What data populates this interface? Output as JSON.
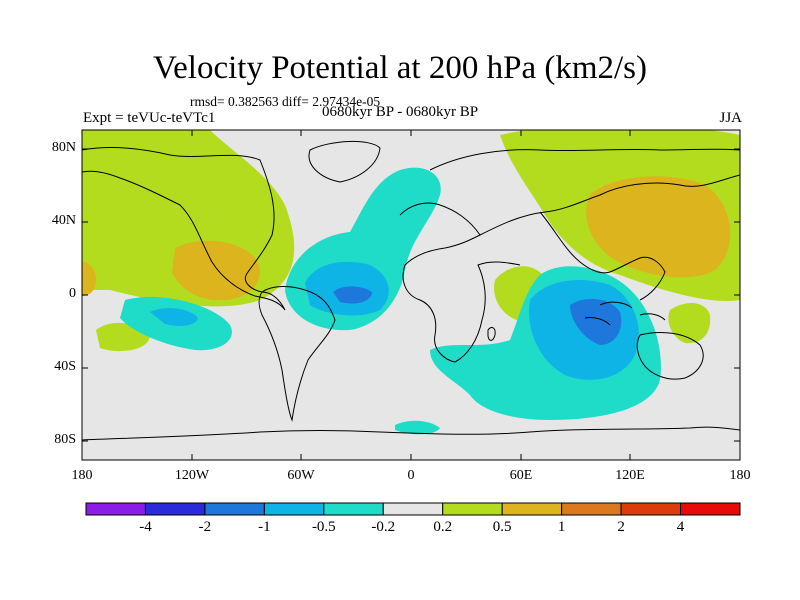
{
  "title": "Velocity Potential at 200 hPa (km2/s)",
  "stats": "rmsd= 0.382563 diff= 2.97434e-05",
  "experiment": "Expt = teVUc-teVTc1",
  "period": "0680kyr BP - 0680kyr BP",
  "season": "JJA",
  "map": {
    "lat_labels": [
      "80N",
      "40N",
      "0",
      "40S",
      "80S"
    ],
    "lon_labels": [
      "180",
      "120W",
      "60W",
      "0",
      "60E",
      "120E",
      "180"
    ],
    "background_color": "#e6e6e6",
    "coast_color": "#000000"
  },
  "colorbar": {
    "labels": [
      "-4",
      "-2",
      "-1",
      "-0.5",
      "-0.2",
      "0.2",
      "0.5",
      "1",
      "2",
      "4"
    ],
    "colors": [
      "#8a1ee6",
      "#2b2bdc",
      "#1e78dc",
      "#0fb4e6",
      "#1edcc8",
      "#e6e6e6",
      "#b4dc1e",
      "#dcb41e",
      "#dc781e",
      "#dc3c0a",
      "#e60a0a"
    ]
  }
}
